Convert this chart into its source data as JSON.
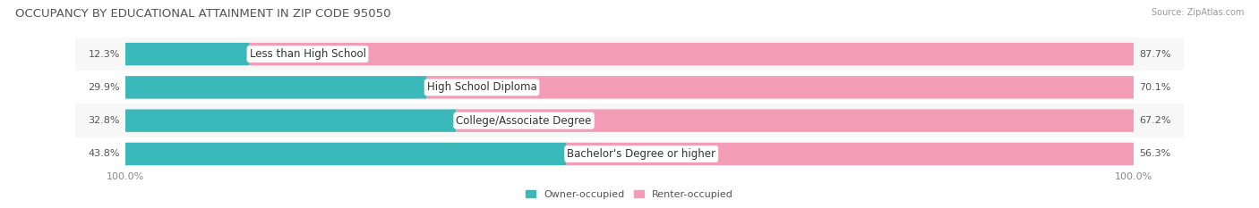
{
  "title": "OCCUPANCY BY EDUCATIONAL ATTAINMENT IN ZIP CODE 95050",
  "source": "Source: ZipAtlas.com",
  "categories": [
    "Less than High School",
    "High School Diploma",
    "College/Associate Degree",
    "Bachelor's Degree or higher"
  ],
  "owner_values": [
    12.3,
    29.9,
    32.8,
    43.8
  ],
  "renter_values": [
    87.7,
    70.1,
    67.2,
    56.3
  ],
  "owner_color": "#3ab8ba",
  "renter_color": "#f49cb6",
  "track_color": "#e8e8e8",
  "row_bg_colors": [
    "#f7f7f7",
    "#ffffff",
    "#f7f7f7",
    "#ffffff"
  ],
  "title_fontsize": 9.5,
  "label_fontsize": 8.5,
  "value_fontsize": 8,
  "legend_fontsize": 8,
  "source_fontsize": 7
}
